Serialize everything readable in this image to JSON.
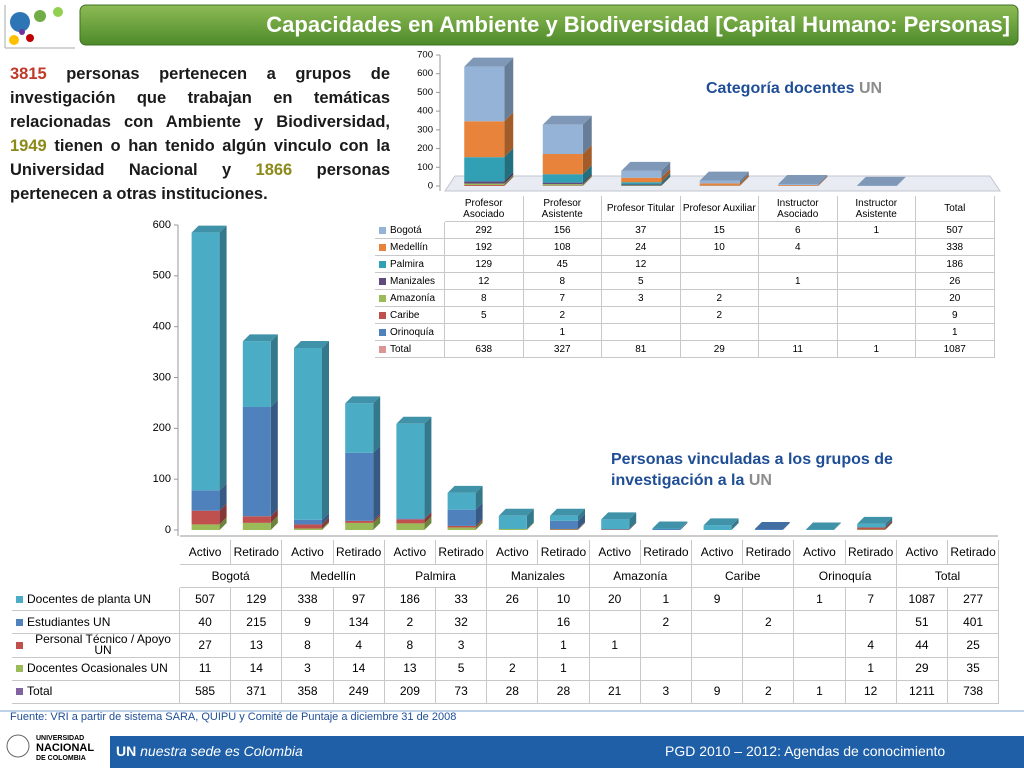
{
  "header": {
    "title": "Capacidades en Ambiente y Biodiversidad [Capital Humano: Personas]"
  },
  "intro": {
    "parts": [
      "3815",
      " personas pertenecen a grupos de investigación que trabajan en temáticas relacionadas con Ambiente y Biodiversidad, ",
      "1949",
      " tienen o han tenido algún vinculo con la Universidad Nacional y ",
      "1866",
      " personas pertenecen a otras instituciones."
    ]
  },
  "chart_data": [
    {
      "type": "bar",
      "stacked": true,
      "title": "Categoría docentes",
      "title_highlight": "UN",
      "categories": [
        "Profesor Asociado",
        "Profesor Asistente",
        "Profesor Titular",
        "Profesor Auxiliar",
        "Instructor Asociado",
        "Instructor Asistente"
      ],
      "total_label": "Total",
      "series": [
        {
          "name": "Bogotá",
          "color": "#95b3d7",
          "values": [
            292,
            156,
            37,
            15,
            6,
            1
          ],
          "total": 507
        },
        {
          "name": "Medellín",
          "color": "#e7833a",
          "values": [
            192,
            108,
            24,
            10,
            4,
            null
          ],
          "total": 338
        },
        {
          "name": "Palmira",
          "color": "#31a0b5",
          "values": [
            129,
            45,
            12,
            null,
            null,
            null
          ],
          "total": 186
        },
        {
          "name": "Manizales",
          "color": "#604a7b",
          "values": [
            12,
            8,
            5,
            null,
            1,
            null
          ],
          "total": 26
        },
        {
          "name": "Amazonía",
          "color": "#9bbb59",
          "values": [
            8,
            7,
            3,
            2,
            null,
            null
          ],
          "total": 20
        },
        {
          "name": "Caribe",
          "color": "#c0504d",
          "values": [
            5,
            2,
            null,
            2,
            null,
            null
          ],
          "total": 9
        },
        {
          "name": "Orinoquía",
          "color": "#4f81bd",
          "values": [
            null,
            1,
            null,
            null,
            null,
            null
          ],
          "total": 1
        }
      ],
      "totals": {
        "name": "Total",
        "color": "#d99694",
        "values": [
          638,
          327,
          81,
          29,
          11,
          1
        ],
        "total": 1087
      },
      "ylim": [
        0,
        700
      ],
      "yticks": [
        0,
        100,
        200,
        300,
        400,
        500,
        600,
        700
      ]
    },
    {
      "type": "bar",
      "stacked": true,
      "title": "Personas vinculadas a los grupos de investigación a la",
      "title_highlight": "UN",
      "groups": [
        "Bogotá",
        "Medellín",
        "Palmira",
        "Manizales",
        "Amazonía",
        "Caribe",
        "Orinoquía"
      ],
      "categories": [
        "Activo",
        "Retirado",
        "Activo",
        "Retirado",
        "Activo",
        "Retirado",
        "Activo",
        "Retirado",
        "Activo",
        "Retirado",
        "Activo",
        "Retirado",
        "Activo",
        "Retirado"
      ],
      "total_group": {
        "label": "Total",
        "categories": [
          "Activo",
          "Retirado"
        ]
      },
      "series": [
        {
          "name": "Docentes de planta UN",
          "color": "#4bacc6",
          "values": [
            507,
            129,
            338,
            97,
            186,
            33,
            26,
            10,
            20,
            1,
            9,
            null,
            1,
            7
          ],
          "total": [
            1087,
            277
          ]
        },
        {
          "name": "Estudiantes UN",
          "color": "#4f81bd",
          "values": [
            40,
            215,
            9,
            134,
            2,
            32,
            null,
            16,
            null,
            2,
            null,
            2,
            null,
            null
          ],
          "total": [
            51,
            401
          ]
        },
        {
          "name": "Personal Técnico / Apoyo UN",
          "color": "#c0504d",
          "values": [
            27,
            13,
            8,
            4,
            8,
            3,
            null,
            1,
            1,
            null,
            null,
            null,
            null,
            4
          ],
          "total": [
            44,
            25
          ]
        },
        {
          "name": "Docentes Ocasionales UN",
          "color": "#9bbb59",
          "values": [
            11,
            14,
            3,
            14,
            13,
            5,
            2,
            1,
            null,
            null,
            null,
            null,
            null,
            1
          ],
          "total": [
            29,
            35
          ]
        }
      ],
      "totals": {
        "name": "Total",
        "color": "#8064a2",
        "values": [
          585,
          371,
          358,
          249,
          209,
          73,
          28,
          28,
          21,
          3,
          9,
          2,
          1,
          12
        ],
        "total": [
          1211,
          738
        ]
      },
      "ylim": [
        0,
        600
      ],
      "yticks": [
        0,
        100,
        200,
        300,
        400,
        500,
        600
      ]
    }
  ],
  "footer": {
    "source": "Fuente: VRI a partir de sistema SARA, QUIPU y Comité de Puntaje a diciembre 31 de 2008",
    "logo": [
      "UNIVERSIDAD",
      "NACIONAL",
      "DE COLOMBIA"
    ],
    "brand": "UN",
    "slogan": " nuestra sede es Colombia",
    "plan": "PGD 2010 – 2012: Agendas de conocimiento"
  }
}
